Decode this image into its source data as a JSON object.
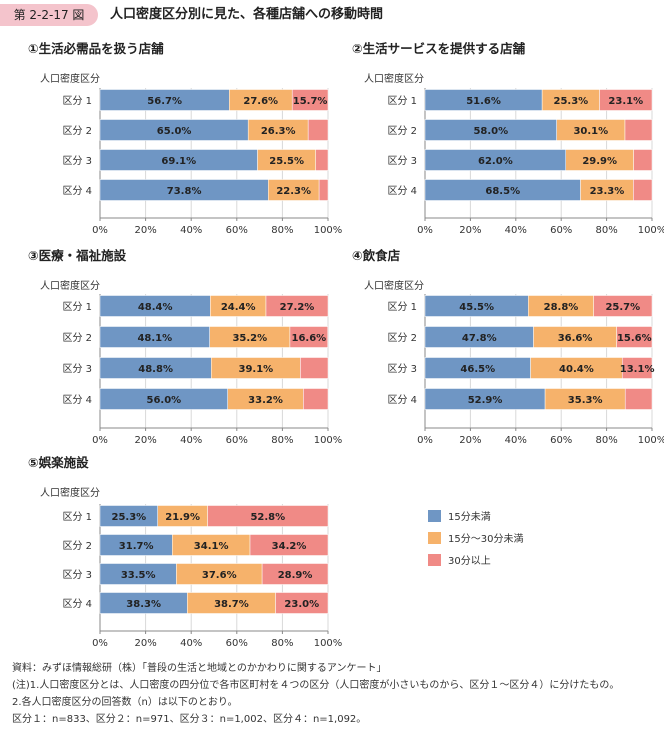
{
  "header": {
    "badge": "第 2-2-17 図",
    "title": "人口密度区分別に見た、各種店舗への移動時間"
  },
  "colors": {
    "series": [
      "#6f96c4",
      "#f6b26b",
      "#f08a86"
    ],
    "grid": "#d9d9d9",
    "axis": "#888888"
  },
  "legend": {
    "items": [
      "15分未満",
      "15分～30分未満",
      "30分以上"
    ]
  },
  "chart_data": [
    {
      "type": "bar",
      "orientation": "horizontal",
      "stacked": true,
      "title": "①生活必需品を扱う店舗",
      "ylabel": "人口密度区分",
      "categories": [
        "区分 1",
        "区分 2",
        "区分 3",
        "区分 4"
      ],
      "xticks": [
        "0%",
        "20%",
        "40%",
        "60%",
        "80%",
        "100%"
      ],
      "xlim": [
        0,
        100
      ],
      "series": [
        {
          "name": "15分未満",
          "values": [
            56.7,
            65.0,
            69.1,
            73.8
          ],
          "labels": [
            "56.7%",
            "65.0%",
            "69.1%",
            "73.8%"
          ]
        },
        {
          "name": "15分～30分未満",
          "values": [
            27.6,
            26.3,
            25.5,
            22.3
          ],
          "labels": [
            "27.6%",
            "26.3%",
            "25.5%",
            "22.3%"
          ]
        },
        {
          "name": "30分以上",
          "values": [
            15.7,
            8.7,
            5.4,
            3.9
          ],
          "labels": [
            "15.7%",
            "",
            "",
            ""
          ]
        }
      ]
    },
    {
      "type": "bar",
      "orientation": "horizontal",
      "stacked": true,
      "title": "②生活サービスを提供する店舗",
      "ylabel": "人口密度区分",
      "categories": [
        "区分 1",
        "区分 2",
        "区分 3",
        "区分 4"
      ],
      "xticks": [
        "0%",
        "20%",
        "40%",
        "60%",
        "80%",
        "100%"
      ],
      "xlim": [
        0,
        100
      ],
      "series": [
        {
          "name": "15分未満",
          "values": [
            51.6,
            58.0,
            62.0,
            68.5
          ],
          "labels": [
            "51.6%",
            "58.0%",
            "62.0%",
            "68.5%"
          ]
        },
        {
          "name": "15分～30分未満",
          "values": [
            25.3,
            30.1,
            29.9,
            23.3
          ],
          "labels": [
            "25.3%",
            "30.1%",
            "29.9%",
            "23.3%"
          ]
        },
        {
          "name": "30分以上",
          "values": [
            23.1,
            11.9,
            8.1,
            8.2
          ],
          "labels": [
            "23.1%",
            "",
            "",
            ""
          ]
        }
      ]
    },
    {
      "type": "bar",
      "orientation": "horizontal",
      "stacked": true,
      "title": "③医療・福祉施設",
      "ylabel": "人口密度区分",
      "categories": [
        "区分 1",
        "区分 2",
        "区分 3",
        "区分 4"
      ],
      "xticks": [
        "0%",
        "20%",
        "40%",
        "60%",
        "80%",
        "100%"
      ],
      "xlim": [
        0,
        100
      ],
      "series": [
        {
          "name": "15分未満",
          "values": [
            48.4,
            48.1,
            48.8,
            56.0
          ],
          "labels": [
            "48.4%",
            "48.1%",
            "48.8%",
            "56.0%"
          ]
        },
        {
          "name": "15分～30分未満",
          "values": [
            24.4,
            35.2,
            39.1,
            33.2
          ],
          "labels": [
            "24.4%",
            "35.2%",
            "39.1%",
            "33.2%"
          ]
        },
        {
          "name": "30分以上",
          "values": [
            27.2,
            16.6,
            12.1,
            10.8
          ],
          "labels": [
            "27.2%",
            "16.6%",
            "",
            ""
          ]
        }
      ]
    },
    {
      "type": "bar",
      "orientation": "horizontal",
      "stacked": true,
      "title": "④飲食店",
      "ylabel": "人口密度区分",
      "categories": [
        "区分 1",
        "区分 2",
        "区分 3",
        "区分 4"
      ],
      "xticks": [
        "0%",
        "20%",
        "40%",
        "60%",
        "80%",
        "100%"
      ],
      "xlim": [
        0,
        100
      ],
      "series": [
        {
          "name": "15分未満",
          "values": [
            45.5,
            47.8,
            46.5,
            52.9
          ],
          "labels": [
            "45.5%",
            "47.8%",
            "46.5%",
            "52.9%"
          ]
        },
        {
          "name": "15分～30分未満",
          "values": [
            28.8,
            36.6,
            40.4,
            35.3
          ],
          "labels": [
            "28.8%",
            "36.6%",
            "40.4%",
            "35.3%"
          ]
        },
        {
          "name": "30分以上",
          "values": [
            25.7,
            15.6,
            13.1,
            11.8
          ],
          "labels": [
            "25.7%",
            "15.6%",
            "13.1%",
            ""
          ]
        }
      ]
    },
    {
      "type": "bar",
      "orientation": "horizontal",
      "stacked": true,
      "title": "⑤娯楽施設",
      "ylabel": "人口密度区分",
      "categories": [
        "区分 1",
        "区分 2",
        "区分 3",
        "区分 4"
      ],
      "xticks": [
        "0%",
        "20%",
        "40%",
        "60%",
        "80%",
        "100%"
      ],
      "xlim": [
        0,
        100
      ],
      "series": [
        {
          "name": "15分未満",
          "values": [
            25.3,
            31.7,
            33.5,
            38.3
          ],
          "labels": [
            "25.3%",
            "31.7%",
            "33.5%",
            "38.3%"
          ]
        },
        {
          "name": "15分～30分未満",
          "values": [
            21.9,
            34.1,
            37.6,
            38.7
          ],
          "labels": [
            "21.9%",
            "34.1%",
            "37.6%",
            "38.7%"
          ]
        },
        {
          "name": "30分以上",
          "values": [
            52.8,
            34.2,
            28.9,
            23.0
          ],
          "labels": [
            "52.8%",
            "34.2%",
            "28.9%",
            "23.0%"
          ]
        }
      ]
    }
  ],
  "footer": {
    "lines": [
      "資料：みずほ情報総研（株）「普段の生活と地域とのかかわりに関するアンケート」",
      "(注)1.人口密度区分とは、人口密度の四分位で各市区町村を４つの区分（人口密度が小さいものから、区分１～区分４）に分けたもの。",
      "2.各人口密度区分の回答数（n）は以下のとおり。",
      "区分１：n=833、区分２：n=971、区分３：n=1,002、区分４：n=1,092。"
    ]
  }
}
